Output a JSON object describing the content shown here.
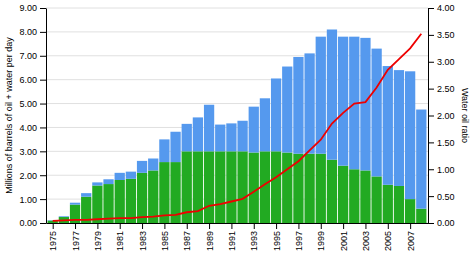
{
  "chart_data": {
    "type": "bar",
    "stacked": true,
    "grid": true,
    "ylabel": "Millions of barrels of oil + water per day",
    "y2label": "Water oil ratio",
    "x": [
      1975,
      1976,
      1977,
      1978,
      1979,
      1980,
      1981,
      1982,
      1983,
      1984,
      1985,
      1986,
      1987,
      1988,
      1989,
      1990,
      1991,
      1992,
      1993,
      1994,
      1995,
      1996,
      1997,
      1998,
      1999,
      2000,
      2001,
      2002,
      2003,
      2004,
      2005,
      2006,
      2007,
      2008
    ],
    "xlim": [
      1974.4,
      2008.6
    ],
    "xticks": [
      1975,
      1977,
      1979,
      1981,
      1983,
      1985,
      1987,
      1989,
      1991,
      1993,
      1995,
      1997,
      1999,
      2001,
      2003,
      2005,
      2007
    ],
    "ylim": [
      0.0,
      9.0
    ],
    "yticks": [
      {
        "value": 0.0,
        "label": "0.00"
      },
      {
        "value": 1.0,
        "label": "1.00"
      },
      {
        "value": 2.0,
        "label": "2.00"
      },
      {
        "value": 3.0,
        "label": "3.00"
      },
      {
        "value": 4.0,
        "label": "4.00"
      },
      {
        "value": 5.0,
        "label": "5.00"
      },
      {
        "value": 6.0,
        "label": "6.00"
      },
      {
        "value": 7.0,
        "label": "7.00"
      },
      {
        "value": 8.0,
        "label": "8.00"
      },
      {
        "value": 9.0,
        "label": "9.00"
      }
    ],
    "y2lim": [
      0.0,
      4.0
    ],
    "y2ticks": [
      {
        "value": 0.0,
        "label": "0.00"
      },
      {
        "value": 0.5,
        "label": "0.50"
      },
      {
        "value": 1.0,
        "label": "1.00"
      },
      {
        "value": 1.5,
        "label": "1.50"
      },
      {
        "value": 2.0,
        "label": "2.00"
      },
      {
        "value": 2.5,
        "label": "2.50"
      },
      {
        "value": 3.0,
        "label": "3.00"
      },
      {
        "value": 3.5,
        "label": "3.50"
      },
      {
        "value": 4.0,
        "label": "4.00"
      }
    ],
    "series": [
      {
        "type": "bar",
        "color": "#22aa22",
        "values": [
          0.1,
          0.25,
          0.77,
          1.1,
          1.57,
          1.63,
          1.8,
          1.85,
          2.1,
          2.2,
          2.55,
          2.55,
          3.0,
          3.0,
          3.0,
          3.0,
          3.0,
          3.0,
          2.95,
          3.0,
          3.0,
          2.95,
          2.9,
          2.9,
          2.9,
          2.65,
          2.4,
          2.25,
          2.2,
          1.95,
          1.6,
          1.55,
          1.0,
          0.6
        ]
      },
      {
        "type": "bar",
        "color": "#5599ee",
        "values": [
          0.02,
          0.03,
          0.08,
          0.15,
          0.13,
          0.2,
          0.3,
          0.3,
          0.5,
          0.5,
          0.95,
          1.27,
          1.15,
          1.42,
          1.95,
          1.12,
          1.17,
          1.28,
          1.92,
          2.22,
          3.05,
          3.6,
          4.05,
          4.2,
          4.9,
          5.45,
          5.4,
          5.55,
          5.55,
          5.35,
          4.97,
          4.85,
          5.35,
          4.15
        ]
      },
      {
        "type": "line",
        "axis": "y2",
        "color": "#ee0000",
        "values": [
          0.04,
          0.05,
          0.06,
          0.06,
          0.07,
          0.08,
          0.09,
          0.09,
          0.11,
          0.12,
          0.14,
          0.15,
          0.2,
          0.22,
          0.32,
          0.35,
          0.4,
          0.45,
          0.58,
          0.72,
          0.85,
          1.0,
          1.15,
          1.35,
          1.55,
          1.85,
          2.05,
          2.22,
          2.25,
          2.52,
          2.85,
          3.05,
          3.25,
          3.52
        ]
      }
    ]
  }
}
